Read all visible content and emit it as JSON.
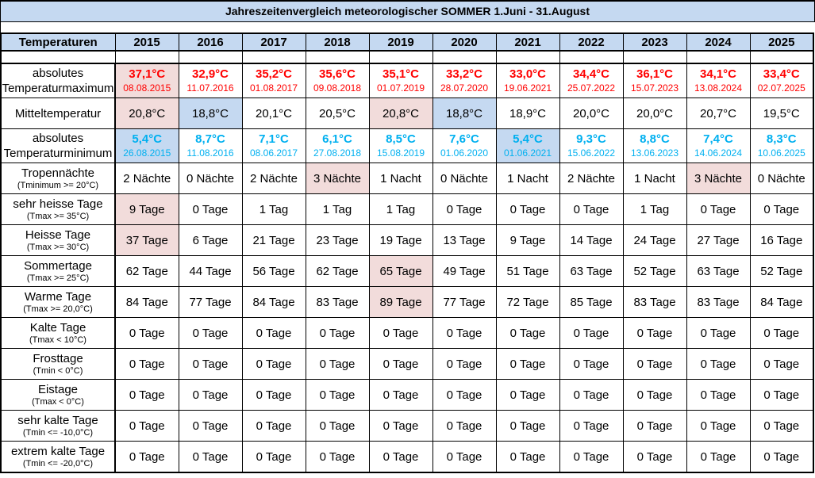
{
  "title": "Jahreszeitenvergleich meteorologischer SOMMER 1.Juni - 31.August",
  "colors": {
    "header_bg": "#C5D9F1",
    "highlight_pink": "#F2DCDB",
    "highlight_blue": "#C5D9F1",
    "max_text": "#FF0000",
    "min_text": "#00B0F0",
    "border": "#000000"
  },
  "table": {
    "corner_header": "Temperaturen",
    "years": [
      "2015",
      "2016",
      "2017",
      "2018",
      "2019",
      "2020",
      "2021",
      "2022",
      "2023",
      "2024",
      "2025"
    ],
    "rows": [
      {
        "id": "row-temperaturmaximum",
        "label": [
          "absolutes",
          "Temperaturmaximum"
        ],
        "sublabel": "",
        "style": "max",
        "tall": true,
        "cells": [
          {
            "v": "37,1°C",
            "d": "08.08.2015",
            "hl": "pink"
          },
          {
            "v": "32,9°C",
            "d": "11.07.2016"
          },
          {
            "v": "35,2°C",
            "d": "01.08.2017"
          },
          {
            "v": "35,6°C",
            "d": "09.08.2018"
          },
          {
            "v": "35,1°C",
            "d": "01.07.2019"
          },
          {
            "v": "33,2°C",
            "d": "28.07.2020"
          },
          {
            "v": "33,0°C",
            "d": "19.06.2021"
          },
          {
            "v": "34,4°C",
            "d": "25.07.2022"
          },
          {
            "v": "36,1°C",
            "d": "15.07.2023"
          },
          {
            "v": "34,1°C",
            "d": "13.08.2024"
          },
          {
            "v": "33,4°C",
            "d": "02.07.2025"
          }
        ]
      },
      {
        "id": "row-mitteltemperatur",
        "label": [
          "Mitteltemperatur"
        ],
        "sublabel": "",
        "style": "plain",
        "tall": false,
        "cells": [
          {
            "v": "20,8°C",
            "hl": "pink"
          },
          {
            "v": "18,8°C",
            "hl": "blue"
          },
          {
            "v": "20,1°C"
          },
          {
            "v": "20,5°C"
          },
          {
            "v": "20,8°C",
            "hl": "pink"
          },
          {
            "v": "18,8°C",
            "hl": "blue"
          },
          {
            "v": "18,9°C"
          },
          {
            "v": "20,0°C"
          },
          {
            "v": "20,0°C"
          },
          {
            "v": "20,7°C"
          },
          {
            "v": "19,5°C"
          }
        ]
      },
      {
        "id": "row-temperaturminimum",
        "label": [
          "absolutes",
          "Temperaturminimum"
        ],
        "sublabel": "",
        "style": "min",
        "tall": true,
        "cells": [
          {
            "v": "5,4°C",
            "d": "26.08.2015",
            "hl": "blue"
          },
          {
            "v": "8,7°C",
            "d": "11.08.2016"
          },
          {
            "v": "7,1°C",
            "d": "08.06.2017"
          },
          {
            "v": "6,1°C",
            "d": "27.08.2018"
          },
          {
            "v": "8,5°C",
            "d": "15.08.2019"
          },
          {
            "v": "7,6°C",
            "d": "01.06.2020"
          },
          {
            "v": "5,4°C",
            "d": "01.06.2021",
            "hl": "blue"
          },
          {
            "v": "9,3°C",
            "d": "15.06.2022"
          },
          {
            "v": "8,8°C",
            "d": "13.06.2023"
          },
          {
            "v": "7,4°C",
            "d": "14.06.2024"
          },
          {
            "v": "8,3°C",
            "d": "10.06.2025"
          }
        ]
      },
      {
        "id": "row-tropennaechte",
        "label": [
          "Tropennächte"
        ],
        "sublabel": "(Tminimum >= 20°C)",
        "style": "plain",
        "tall": false,
        "cells": [
          {
            "v": "2 Nächte"
          },
          {
            "v": "0 Nächte"
          },
          {
            "v": "2 Nächte"
          },
          {
            "v": "3 Nächte",
            "hl": "pink"
          },
          {
            "v": "1 Nacht"
          },
          {
            "v": "0 Nächte"
          },
          {
            "v": "1 Nacht"
          },
          {
            "v": "2 Nächte"
          },
          {
            "v": "1 Nacht"
          },
          {
            "v": "3 Nächte",
            "hl": "pink"
          },
          {
            "v": "0 Nächte"
          }
        ]
      },
      {
        "id": "row-sehr-heisse-tage",
        "label": [
          "sehr heisse Tage"
        ],
        "sublabel": "(Tmax >= 35°C)",
        "style": "plain",
        "tall": false,
        "cells": [
          {
            "v": "9 Tage",
            "hl": "pink"
          },
          {
            "v": "0 Tage"
          },
          {
            "v": "1 Tag"
          },
          {
            "v": "1 Tag"
          },
          {
            "v": "1 Tag"
          },
          {
            "v": "0 Tage"
          },
          {
            "v": "0 Tage"
          },
          {
            "v": "0 Tage"
          },
          {
            "v": "1 Tag"
          },
          {
            "v": "0 Tage"
          },
          {
            "v": "0 Tage"
          }
        ]
      },
      {
        "id": "row-heisse-tage",
        "label": [
          "Heisse Tage"
        ],
        "sublabel": "(Tmax >= 30°C)",
        "style": "plain",
        "tall": false,
        "cells": [
          {
            "v": "37 Tage",
            "hl": "pink"
          },
          {
            "v": "6 Tage"
          },
          {
            "v": "21 Tage"
          },
          {
            "v": "23 Tage"
          },
          {
            "v": "19 Tage"
          },
          {
            "v": "13 Tage"
          },
          {
            "v": "9 Tage"
          },
          {
            "v": "14 Tage"
          },
          {
            "v": "24 Tage"
          },
          {
            "v": "27 Tage"
          },
          {
            "v": "16 Tage"
          }
        ]
      },
      {
        "id": "row-sommertage",
        "label": [
          "Sommertage"
        ],
        "sublabel": "(Tmax >= 25°C)",
        "style": "plain",
        "tall": false,
        "cells": [
          {
            "v": "62 Tage"
          },
          {
            "v": "44 Tage"
          },
          {
            "v": "56 Tage"
          },
          {
            "v": "62 Tage"
          },
          {
            "v": "65 Tage",
            "hl": "pink"
          },
          {
            "v": "49 Tage"
          },
          {
            "v": "51 Tage"
          },
          {
            "v": "63 Tage"
          },
          {
            "v": "52 Tage"
          },
          {
            "v": "63 Tage"
          },
          {
            "v": "52 Tage"
          }
        ]
      },
      {
        "id": "row-warme-tage",
        "label": [
          "Warme Tage"
        ],
        "sublabel": "(Tmax >= 20,0°C)",
        "style": "plain",
        "tall": false,
        "cells": [
          {
            "v": "84 Tage"
          },
          {
            "v": "77 Tage"
          },
          {
            "v": "84 Tage"
          },
          {
            "v": "83 Tage"
          },
          {
            "v": "89 Tage",
            "hl": "pink"
          },
          {
            "v": "77 Tage"
          },
          {
            "v": "72 Tage"
          },
          {
            "v": "85 Tage"
          },
          {
            "v": "83 Tage"
          },
          {
            "v": "83 Tage"
          },
          {
            "v": "84 Tage"
          }
        ]
      },
      {
        "id": "row-kalte-tage",
        "label": [
          "Kalte Tage"
        ],
        "sublabel": "(Tmax < 10°C)",
        "style": "plain",
        "tall": false,
        "cells": [
          {
            "v": "0 Tage"
          },
          {
            "v": "0 Tage"
          },
          {
            "v": "0 Tage"
          },
          {
            "v": "0 Tage"
          },
          {
            "v": "0 Tage"
          },
          {
            "v": "0 Tage"
          },
          {
            "v": "0 Tage"
          },
          {
            "v": "0 Tage"
          },
          {
            "v": "0 Tage"
          },
          {
            "v": "0 Tage"
          },
          {
            "v": "0 Tage"
          }
        ]
      },
      {
        "id": "row-frosttage",
        "label": [
          "Frosttage"
        ],
        "sublabel": "(Tmin < 0°C)",
        "style": "plain",
        "tall": false,
        "cells": [
          {
            "v": "0 Tage"
          },
          {
            "v": "0 Tage"
          },
          {
            "v": "0 Tage"
          },
          {
            "v": "0 Tage"
          },
          {
            "v": "0 Tage"
          },
          {
            "v": "0 Tage"
          },
          {
            "v": "0 Tage"
          },
          {
            "v": "0 Tage"
          },
          {
            "v": "0 Tage"
          },
          {
            "v": "0 Tage"
          },
          {
            "v": "0 Tage"
          }
        ]
      },
      {
        "id": "row-eistage",
        "label": [
          "Eistage"
        ],
        "sublabel": "(Tmax < 0°C)",
        "style": "plain",
        "tall": false,
        "cells": [
          {
            "v": "0 Tage"
          },
          {
            "v": "0 Tage"
          },
          {
            "v": "0 Tage"
          },
          {
            "v": "0 Tage"
          },
          {
            "v": "0 Tage"
          },
          {
            "v": "0 Tage"
          },
          {
            "v": "0 Tage"
          },
          {
            "v": "0 Tage"
          },
          {
            "v": "0 Tage"
          },
          {
            "v": "0 Tage"
          },
          {
            "v": "0 Tage"
          }
        ]
      },
      {
        "id": "row-sehr-kalte-tage",
        "label": [
          "sehr kalte Tage"
        ],
        "sublabel": "(Tmin <= -10,0°C)",
        "style": "plain",
        "tall": false,
        "cells": [
          {
            "v": "0 Tage"
          },
          {
            "v": "0 Tage"
          },
          {
            "v": "0 Tage"
          },
          {
            "v": "0 Tage"
          },
          {
            "v": "0 Tage"
          },
          {
            "v": "0 Tage"
          },
          {
            "v": "0 Tage"
          },
          {
            "v": "0 Tage"
          },
          {
            "v": "0 Tage"
          },
          {
            "v": "0 Tage"
          },
          {
            "v": "0 Tage"
          }
        ]
      },
      {
        "id": "row-extrem-kalte-tage",
        "label": [
          "extrem kalte Tage"
        ],
        "sublabel": "(Tmin <= -20,0°C)",
        "style": "plain",
        "tall": false,
        "cells": [
          {
            "v": "0 Tage"
          },
          {
            "v": "0 Tage"
          },
          {
            "v": "0 Tage"
          },
          {
            "v": "0 Tage"
          },
          {
            "v": "0 Tage"
          },
          {
            "v": "0 Tage"
          },
          {
            "v": "0 Tage"
          },
          {
            "v": "0 Tage"
          },
          {
            "v": "0 Tage"
          },
          {
            "v": "0 Tage"
          },
          {
            "v": "0 Tage"
          }
        ]
      }
    ]
  },
  "chart_data": {
    "type": "table",
    "title": "Jahreszeitenvergleich meteorologischer SOMMER 1.Juni - 31.August",
    "x": [
      2015,
      2016,
      2017,
      2018,
      2019,
      2020,
      2021,
      2022,
      2023,
      2024,
      2025
    ],
    "series": [
      {
        "name": "absolutes Temperaturmaximum (°C)",
        "values": [
          37.1,
          32.9,
          35.2,
          35.6,
          35.1,
          33.2,
          33.0,
          34.4,
          36.1,
          34.1,
          33.4
        ],
        "dates": [
          "08.08.2015",
          "11.07.2016",
          "01.08.2017",
          "09.08.2018",
          "01.07.2019",
          "28.07.2020",
          "19.06.2021",
          "25.07.2022",
          "15.07.2023",
          "13.08.2024",
          "02.07.2025"
        ]
      },
      {
        "name": "Mitteltemperatur (°C)",
        "values": [
          20.8,
          18.8,
          20.1,
          20.5,
          20.8,
          18.8,
          18.9,
          20.0,
          20.0,
          20.7,
          19.5
        ]
      },
      {
        "name": "absolutes Temperaturminimum (°C)",
        "values": [
          5.4,
          8.7,
          7.1,
          6.1,
          8.5,
          7.6,
          5.4,
          9.3,
          8.8,
          7.4,
          8.3
        ],
        "dates": [
          "26.08.2015",
          "11.08.2016",
          "08.06.2017",
          "27.08.2018",
          "15.08.2019",
          "01.06.2020",
          "01.06.2021",
          "15.06.2022",
          "13.06.2023",
          "14.06.2024",
          "10.06.2025"
        ]
      },
      {
        "name": "Tropennächte (Tminimum >= 20°C)",
        "values": [
          2,
          0,
          2,
          3,
          1,
          0,
          1,
          2,
          1,
          3,
          0
        ]
      },
      {
        "name": "sehr heisse Tage (Tmax >= 35°C)",
        "values": [
          9,
          0,
          1,
          1,
          1,
          0,
          0,
          0,
          1,
          0,
          0
        ]
      },
      {
        "name": "Heisse Tage (Tmax >= 30°C)",
        "values": [
          37,
          6,
          21,
          23,
          19,
          13,
          9,
          14,
          24,
          27,
          16
        ]
      },
      {
        "name": "Sommertage (Tmax >= 25°C)",
        "values": [
          62,
          44,
          56,
          62,
          65,
          49,
          51,
          63,
          52,
          63,
          52
        ]
      },
      {
        "name": "Warme Tage (Tmax >= 20,0°C)",
        "values": [
          84,
          77,
          84,
          83,
          89,
          77,
          72,
          85,
          83,
          83,
          84
        ]
      },
      {
        "name": "Kalte Tage (Tmax < 10°C)",
        "values": [
          0,
          0,
          0,
          0,
          0,
          0,
          0,
          0,
          0,
          0,
          0
        ]
      },
      {
        "name": "Frosttage (Tmin < 0°C)",
        "values": [
          0,
          0,
          0,
          0,
          0,
          0,
          0,
          0,
          0,
          0,
          0
        ]
      },
      {
        "name": "Eistage (Tmax < 0°C)",
        "values": [
          0,
          0,
          0,
          0,
          0,
          0,
          0,
          0,
          0,
          0,
          0
        ]
      },
      {
        "name": "sehr kalte Tage (Tmin <= -10,0°C)",
        "values": [
          0,
          0,
          0,
          0,
          0,
          0,
          0,
          0,
          0,
          0,
          0
        ]
      },
      {
        "name": "extrem kalte Tage (Tmin <= -20,0°C)",
        "values": [
          0,
          0,
          0,
          0,
          0,
          0,
          0,
          0,
          0,
          0,
          0
        ]
      }
    ]
  }
}
